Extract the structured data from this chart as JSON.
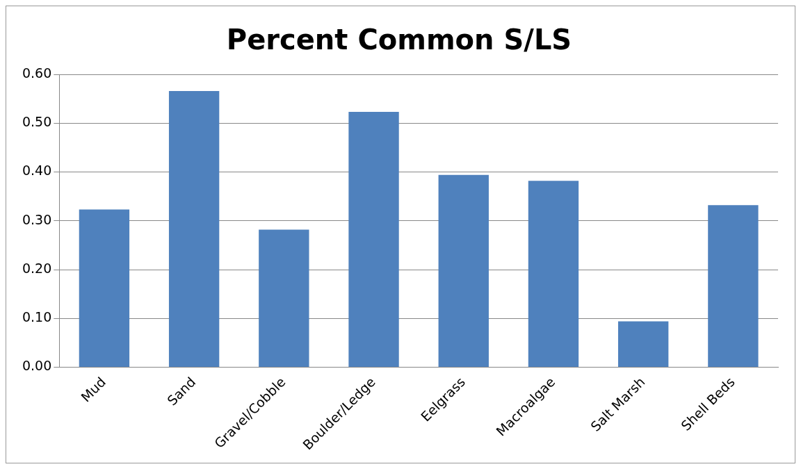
{
  "chart_data": {
    "type": "bar",
    "title": "Percent Common S/LS",
    "categories": [
      "Mud",
      "Sand",
      "Gravel/Cobble",
      "Boulder/Ledge",
      "Eelgrass",
      "Macroalgae",
      "Salt Marsh",
      "Shell Beds"
    ],
    "values": [
      0.323,
      0.566,
      0.282,
      0.523,
      0.394,
      0.382,
      0.094,
      0.332
    ],
    "color": "#4f81bd",
    "ylim": [
      0,
      0.6
    ],
    "yticks": [
      {
        "value": 0,
        "label": "0.00"
      },
      {
        "value": 0.1,
        "label": "0.10"
      },
      {
        "value": 0.2,
        "label": "0.20"
      },
      {
        "value": 0.3,
        "label": "0.30"
      },
      {
        "value": 0.4,
        "label": "0.40"
      },
      {
        "value": 0.5,
        "label": "0.50"
      },
      {
        "value": 0.6,
        "label": "0.60"
      }
    ],
    "grid": "y",
    "legend": false
  }
}
